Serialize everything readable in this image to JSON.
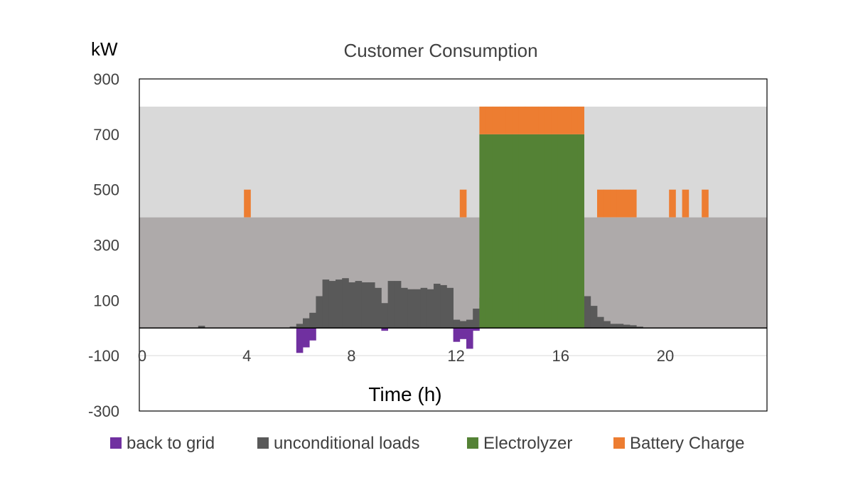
{
  "chart_data": {
    "type": "bar",
    "title": "Customer Consumption",
    "ylabel": "kW",
    "xlabel": "Time (h)",
    "xlim": [
      0,
      24
    ],
    "ylim": [
      -300,
      900
    ],
    "y_ticks": [
      900,
      700,
      500,
      300,
      100,
      -100,
      -300
    ],
    "x_ticks": [
      0,
      4,
      8,
      12,
      16,
      20
    ],
    "bar_width_h": 0.25,
    "background_bands": [
      {
        "from": 0,
        "to": 400,
        "color": "#aeaaaa"
      },
      {
        "from": 400,
        "to": 800,
        "color": "#d9d9d9"
      }
    ],
    "colors": {
      "back_to_grid": "#7030a0",
      "unconditional_loads": "#595959",
      "electrolyzer": "#548235",
      "battery_charge": "#ed7d31",
      "grid_line": "#d9d9d9",
      "axis": "#000000"
    },
    "legend_position": "bottom",
    "series": [
      {
        "key": "back_to_grid",
        "name": "back to grid",
        "points": [
          [
            6.0,
            -90
          ],
          [
            6.25,
            -70
          ],
          [
            6.5,
            -45
          ],
          [
            9.25,
            -10
          ],
          [
            12.0,
            -50
          ],
          [
            12.25,
            -40
          ],
          [
            12.5,
            -75
          ],
          [
            12.75,
            -10
          ]
        ]
      },
      {
        "key": "unconditional_loads",
        "name": "unconditional loads",
        "points": [
          [
            2.25,
            8
          ],
          [
            5.75,
            5
          ],
          [
            6.0,
            15
          ],
          [
            6.25,
            35
          ],
          [
            6.5,
            55
          ],
          [
            6.75,
            115
          ],
          [
            7.0,
            175
          ],
          [
            7.25,
            170
          ],
          [
            7.5,
            175
          ],
          [
            7.75,
            180
          ],
          [
            8.0,
            165
          ],
          [
            8.25,
            170
          ],
          [
            8.5,
            165
          ],
          [
            8.75,
            165
          ],
          [
            9.0,
            145
          ],
          [
            9.25,
            90
          ],
          [
            9.5,
            170
          ],
          [
            9.75,
            170
          ],
          [
            10.0,
            145
          ],
          [
            10.25,
            140
          ],
          [
            10.5,
            140
          ],
          [
            10.75,
            145
          ],
          [
            11.0,
            140
          ],
          [
            11.25,
            160
          ],
          [
            11.5,
            155
          ],
          [
            11.75,
            145
          ],
          [
            12.0,
            30
          ],
          [
            12.25,
            25
          ],
          [
            12.5,
            30
          ],
          [
            12.75,
            70
          ],
          [
            13.0,
            110
          ],
          [
            13.25,
            125
          ],
          [
            13.5,
            140
          ],
          [
            13.75,
            150
          ],
          [
            14.0,
            120
          ],
          [
            14.25,
            125
          ],
          [
            14.5,
            120
          ],
          [
            14.75,
            135
          ],
          [
            15.0,
            140
          ],
          [
            15.25,
            145
          ],
          [
            15.5,
            150
          ],
          [
            15.75,
            130
          ],
          [
            16.0,
            135
          ],
          [
            16.25,
            140
          ],
          [
            16.5,
            135
          ],
          [
            16.75,
            130
          ],
          [
            17.0,
            115
          ],
          [
            17.25,
            80
          ],
          [
            17.5,
            40
          ],
          [
            17.75,
            25
          ],
          [
            18.0,
            15
          ],
          [
            18.25,
            15
          ],
          [
            18.5,
            12
          ],
          [
            18.75,
            10
          ],
          [
            19.0,
            5
          ]
        ]
      },
      {
        "key": "electrolyzer",
        "name": "Electrolyzer",
        "points": [
          [
            13.0,
            700
          ],
          [
            13.25,
            700
          ],
          [
            13.5,
            700
          ],
          [
            13.75,
            700
          ],
          [
            14.0,
            700
          ],
          [
            14.25,
            700
          ],
          [
            14.5,
            700
          ],
          [
            14.75,
            700
          ],
          [
            15.0,
            700
          ],
          [
            15.25,
            700
          ],
          [
            15.5,
            700
          ],
          [
            15.75,
            700
          ],
          [
            16.0,
            700
          ],
          [
            16.25,
            700
          ],
          [
            16.5,
            700
          ],
          [
            16.75,
            700
          ]
        ]
      },
      {
        "key": "battery_charge",
        "name": "Battery Charge",
        "points": [
          [
            4.0,
            500
          ],
          [
            12.25,
            500
          ],
          [
            13.0,
            800
          ],
          [
            13.25,
            800
          ],
          [
            13.5,
            800
          ],
          [
            13.75,
            800
          ],
          [
            14.0,
            800
          ],
          [
            14.25,
            800
          ],
          [
            14.5,
            800
          ],
          [
            14.75,
            800
          ],
          [
            15.0,
            800
          ],
          [
            15.25,
            800
          ],
          [
            15.5,
            800
          ],
          [
            15.75,
            800
          ],
          [
            16.0,
            800
          ],
          [
            16.25,
            800
          ],
          [
            16.5,
            800
          ],
          [
            16.75,
            800
          ],
          [
            17.5,
            500
          ],
          [
            17.75,
            500
          ],
          [
            18.0,
            500
          ],
          [
            18.25,
            500
          ],
          [
            18.5,
            500
          ],
          [
            18.75,
            500
          ],
          [
            20.25,
            500
          ],
          [
            20.75,
            500
          ],
          [
            21.5,
            500
          ]
        ],
        "base_points": [
          [
            4.0,
            400
          ],
          [
            12.25,
            400
          ],
          [
            13.0,
            700
          ],
          [
            13.25,
            700
          ],
          [
            13.5,
            700
          ],
          [
            13.75,
            700
          ],
          [
            14.0,
            700
          ],
          [
            14.25,
            700
          ],
          [
            14.5,
            700
          ],
          [
            14.75,
            700
          ],
          [
            15.0,
            700
          ],
          [
            15.25,
            700
          ],
          [
            15.5,
            700
          ],
          [
            15.75,
            700
          ],
          [
            16.0,
            700
          ],
          [
            16.25,
            700
          ],
          [
            16.5,
            700
          ],
          [
            16.75,
            700
          ],
          [
            17.5,
            400
          ],
          [
            17.75,
            400
          ],
          [
            18.0,
            400
          ],
          [
            18.25,
            400
          ],
          [
            18.5,
            400
          ],
          [
            18.75,
            400
          ],
          [
            20.25,
            400
          ],
          [
            20.75,
            400
          ],
          [
            21.5,
            400
          ]
        ]
      }
    ]
  }
}
